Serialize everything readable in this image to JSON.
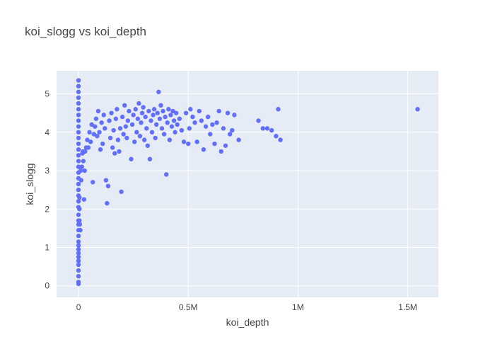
{
  "chart_data": {
    "type": "scatter",
    "title": "koi_slogg vs koi_depth",
    "xlabel": "koi_depth",
    "ylabel": "koi_slogg",
    "xlim": [
      -100000,
      1640000
    ],
    "ylim": [
      -0.3,
      5.6
    ],
    "x_ticks": [
      0,
      500000,
      1000000,
      1500000
    ],
    "x_tick_labels": [
      "0",
      "0.5M",
      "1M",
      "1.5M"
    ],
    "y_ticks": [
      0,
      1,
      2,
      3,
      4,
      5
    ],
    "y_tick_labels": [
      "0",
      "1",
      "2",
      "3",
      "4",
      "5"
    ],
    "grid": true,
    "colors": {
      "marker": "#636efa",
      "plot_bg": "#e5ecf6",
      "grid": "#ffffff"
    },
    "series": [
      {
        "values": [
          [
            0,
            5.35
          ],
          [
            0,
            5.2
          ],
          [
            0,
            5.05
          ],
          [
            0,
            4.9
          ],
          [
            0,
            4.75
          ],
          [
            0,
            4.6
          ],
          [
            0,
            4.45
          ],
          [
            0,
            4.3
          ],
          [
            0,
            4.15
          ],
          [
            0,
            4.0
          ],
          [
            0,
            3.85
          ],
          [
            0,
            3.7
          ],
          [
            0,
            3.55
          ],
          [
            0,
            3.4
          ],
          [
            0,
            3.25
          ],
          [
            0,
            3.1
          ],
          [
            0,
            2.95
          ],
          [
            0,
            2.8
          ],
          [
            0,
            2.65
          ],
          [
            0,
            2.5
          ],
          [
            0,
            2.35
          ],
          [
            0,
            2.2
          ],
          [
            0,
            2.05
          ],
          [
            0,
            1.85
          ],
          [
            0,
            1.7
          ],
          [
            0,
            1.6
          ],
          [
            0,
            1.45
          ],
          [
            0,
            1.3
          ],
          [
            0,
            1.15
          ],
          [
            0,
            1.05
          ],
          [
            0,
            0.95
          ],
          [
            0,
            0.85
          ],
          [
            0,
            0.75
          ],
          [
            0,
            0.65
          ],
          [
            0,
            0.55
          ],
          [
            0,
            0.4
          ],
          [
            0,
            0.25
          ],
          [
            0,
            0.1
          ],
          [
            0,
            0.05
          ],
          [
            4000,
            2.3
          ],
          [
            4000,
            2.0
          ],
          [
            4000,
            1.7
          ],
          [
            6000,
            1.6
          ],
          [
            8000,
            1.45
          ],
          [
            10000,
            3.0
          ],
          [
            12000,
            2.75
          ],
          [
            15000,
            3.1
          ],
          [
            18000,
            3.45
          ],
          [
            20000,
            3.5
          ],
          [
            22000,
            3.25
          ],
          [
            25000,
            2.25
          ],
          [
            28000,
            3.0
          ],
          [
            30000,
            3.5
          ],
          [
            35000,
            3.6
          ],
          [
            40000,
            3.8
          ],
          [
            45000,
            3.6
          ],
          [
            50000,
            4.0
          ],
          [
            55000,
            3.75
          ],
          [
            60000,
            4.2
          ],
          [
            65000,
            2.7
          ],
          [
            70000,
            3.95
          ],
          [
            75000,
            4.15
          ],
          [
            80000,
            4.35
          ],
          [
            85000,
            3.9
          ],
          [
            90000,
            4.55
          ],
          [
            95000,
            4.0
          ],
          [
            100000,
            3.55
          ],
          [
            105000,
            4.25
          ],
          [
            110000,
            3.7
          ],
          [
            115000,
            4.45
          ],
          [
            120000,
            4.1
          ],
          [
            125000,
            2.75
          ],
          [
            130000,
            2.15
          ],
          [
            135000,
            2.6
          ],
          [
            140000,
            4.3
          ],
          [
            145000,
            3.85
          ],
          [
            150000,
            4.5
          ],
          [
            155000,
            3.6
          ],
          [
            160000,
            4.05
          ],
          [
            165000,
            3.45
          ],
          [
            170000,
            4.35
          ],
          [
            175000,
            4.6
          ],
          [
            180000,
            3.8
          ],
          [
            185000,
            3.5
          ],
          [
            190000,
            4.1
          ],
          [
            195000,
            2.45
          ],
          [
            200000,
            4.4
          ],
          [
            205000,
            3.95
          ],
          [
            210000,
            4.7
          ],
          [
            215000,
            4.15
          ],
          [
            220000,
            3.85
          ],
          [
            225000,
            4.3
          ],
          [
            230000,
            4.55
          ],
          [
            240000,
            3.3
          ],
          [
            245000,
            4.2
          ],
          [
            250000,
            4.45
          ],
          [
            255000,
            3.75
          ],
          [
            260000,
            4.6
          ],
          [
            265000,
            4.0
          ],
          [
            270000,
            4.35
          ],
          [
            275000,
            4.75
          ],
          [
            280000,
            3.9
          ],
          [
            285000,
            4.25
          ],
          [
            290000,
            4.5
          ],
          [
            295000,
            4.65
          ],
          [
            300000,
            3.8
          ],
          [
            305000,
            4.4
          ],
          [
            310000,
            4.1
          ],
          [
            315000,
            3.65
          ],
          [
            320000,
            4.55
          ],
          [
            325000,
            3.3
          ],
          [
            330000,
            4.3
          ],
          [
            335000,
            4.0
          ],
          [
            340000,
            4.45
          ],
          [
            345000,
            4.6
          ],
          [
            350000,
            3.85
          ],
          [
            355000,
            4.2
          ],
          [
            360000,
            4.5
          ],
          [
            365000,
            5.05
          ],
          [
            370000,
            4.35
          ],
          [
            375000,
            4.7
          ],
          [
            380000,
            4.1
          ],
          [
            385000,
            4.55
          ],
          [
            390000,
            3.95
          ],
          [
            395000,
            4.4
          ],
          [
            400000,
            2.9
          ],
          [
            405000,
            4.25
          ],
          [
            410000,
            4.6
          ],
          [
            415000,
            3.8
          ],
          [
            420000,
            4.45
          ],
          [
            425000,
            4.15
          ],
          [
            430000,
            4.55
          ],
          [
            435000,
            4.3
          ],
          [
            440000,
            4.0
          ],
          [
            445000,
            4.5
          ],
          [
            450000,
            4.2
          ],
          [
            460000,
            4.35
          ],
          [
            470000,
            4.05
          ],
          [
            480000,
            3.75
          ],
          [
            490000,
            4.5
          ],
          [
            500000,
            3.7
          ],
          [
            505000,
            4.1
          ],
          [
            510000,
            4.6
          ],
          [
            520000,
            4.4
          ],
          [
            530000,
            4.25
          ],
          [
            540000,
            3.75
          ],
          [
            550000,
            4.55
          ],
          [
            560000,
            4.3
          ],
          [
            570000,
            3.55
          ],
          [
            580000,
            4.15
          ],
          [
            590000,
            4.4
          ],
          [
            600000,
            3.95
          ],
          [
            610000,
            4.2
          ],
          [
            620000,
            3.7
          ],
          [
            630000,
            4.25
          ],
          [
            640000,
            4.55
          ],
          [
            650000,
            3.5
          ],
          [
            660000,
            4.1
          ],
          [
            670000,
            3.65
          ],
          [
            680000,
            4.5
          ],
          [
            690000,
            3.95
          ],
          [
            700000,
            4.05
          ],
          [
            710000,
            4.45
          ],
          [
            730000,
            3.8
          ],
          [
            820000,
            4.3
          ],
          [
            840000,
            4.1
          ],
          [
            860000,
            4.1
          ],
          [
            880000,
            4.05
          ],
          [
            900000,
            3.9
          ],
          [
            910000,
            4.6
          ],
          [
            920000,
            3.8
          ],
          [
            1545000,
            4.6
          ]
        ]
      }
    ]
  }
}
